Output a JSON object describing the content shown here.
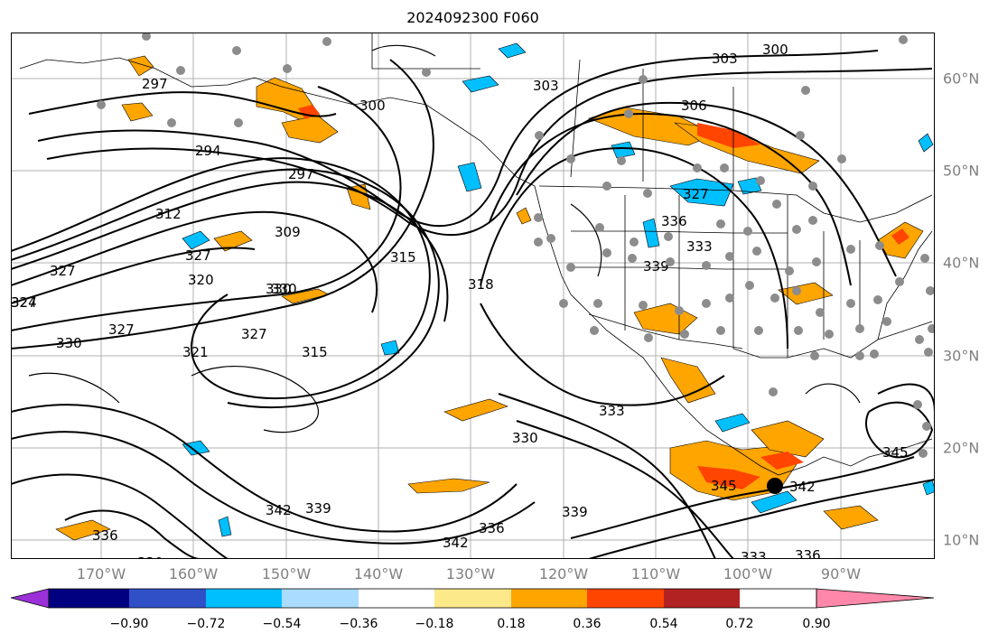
{
  "title": "2024092300 F060",
  "lon_labels": [
    "170°W",
    "160°W",
    "150°W",
    "140°W",
    "130°W",
    "120°W",
    "110°W",
    "100°W",
    "90°W"
  ],
  "lat_labels": [
    "60°N",
    "50°N",
    "40°N",
    "30°N",
    "20°N",
    "10°N"
  ],
  "colorbar": {
    "ticks": [
      "−0.90",
      "−0.72",
      "−0.54",
      "−0.36",
      "−0.18",
      "0.18",
      "0.36",
      "0.54",
      "0.72",
      "0.90"
    ],
    "colors": [
      "#9b30d9",
      "#000080",
      "#3050c8",
      "#00bfff",
      "#aadcff",
      "#ffffff",
      "#fce98a",
      "#ffa500",
      "#ff4500",
      "#b22222",
      "#ff88aa"
    ]
  },
  "contour_labels": [
    "303",
    "300",
    "303",
    "306",
    "297",
    "300",
    "294",
    "297",
    "312",
    "309",
    "315",
    "318",
    "330",
    "327",
    "320",
    "327",
    "327",
    "324",
    "330",
    "327",
    "321",
    "327",
    "330",
    "315",
    "333",
    "330",
    "339",
    "336",
    "342",
    "345",
    "342",
    "345",
    "342",
    "339",
    "336",
    "336",
    "333",
    "330",
    "330",
    "327",
    "333",
    "336",
    "339"
  ],
  "colors": {
    "positive": "#ffa500",
    "strong_positive": "#ff4500",
    "negative": "#00bfff",
    "grid": "#b0b0b0",
    "station_marker": "#8c8c8c",
    "tick_label": "#808080"
  },
  "legend_position": "bottom colorbar"
}
